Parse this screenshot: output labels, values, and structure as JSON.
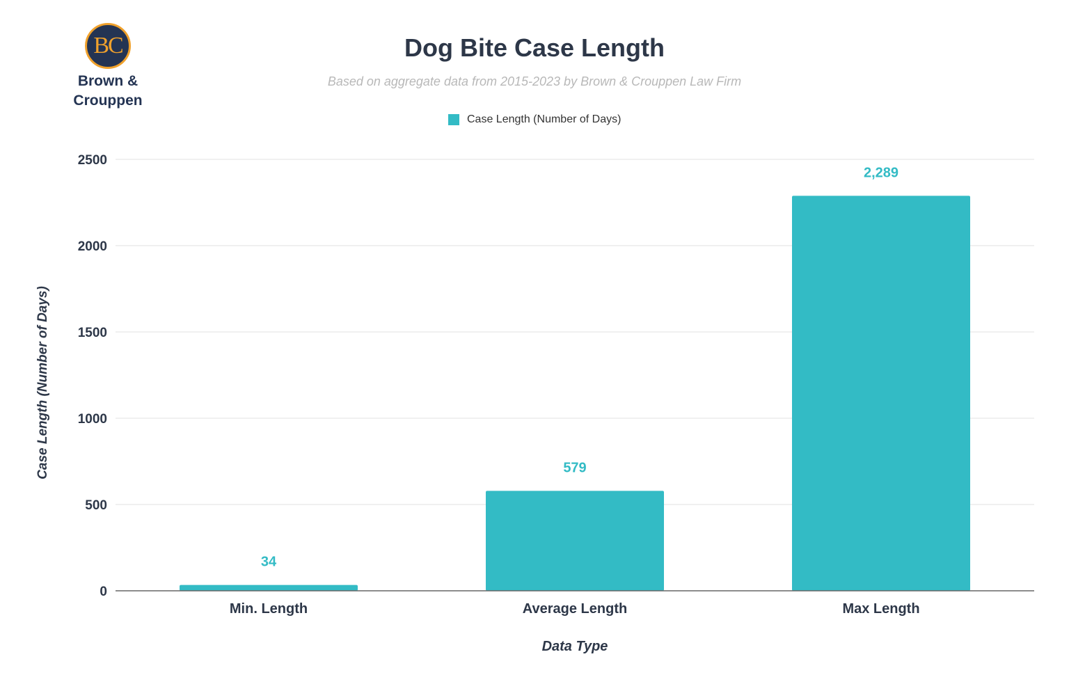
{
  "logo": {
    "initials": "BC",
    "name_line1": "Brown &",
    "name_line2": "Crouppen"
  },
  "chart_data": {
    "type": "bar",
    "title": "Dog Bite Case Length",
    "subtitle": "Based on aggregate data from 2015-2023 by Brown & Crouppen Law Firm",
    "categories": [
      "Min. Length",
      "Average Length",
      "Max Length"
    ],
    "series": [
      {
        "name": "Case Length (Number of Days)",
        "values": [
          34,
          579,
          2289
        ],
        "color": "#33bbc5"
      }
    ],
    "data_labels": [
      "34",
      "579",
      "2,289"
    ],
    "xlabel": "Data Type",
    "ylabel": "Case Length (Number of Days)",
    "ylim": [
      0,
      2500
    ],
    "yticks": [
      0,
      500,
      1000,
      1500,
      2000,
      2500
    ],
    "grid": true,
    "legend": "top-center"
  }
}
